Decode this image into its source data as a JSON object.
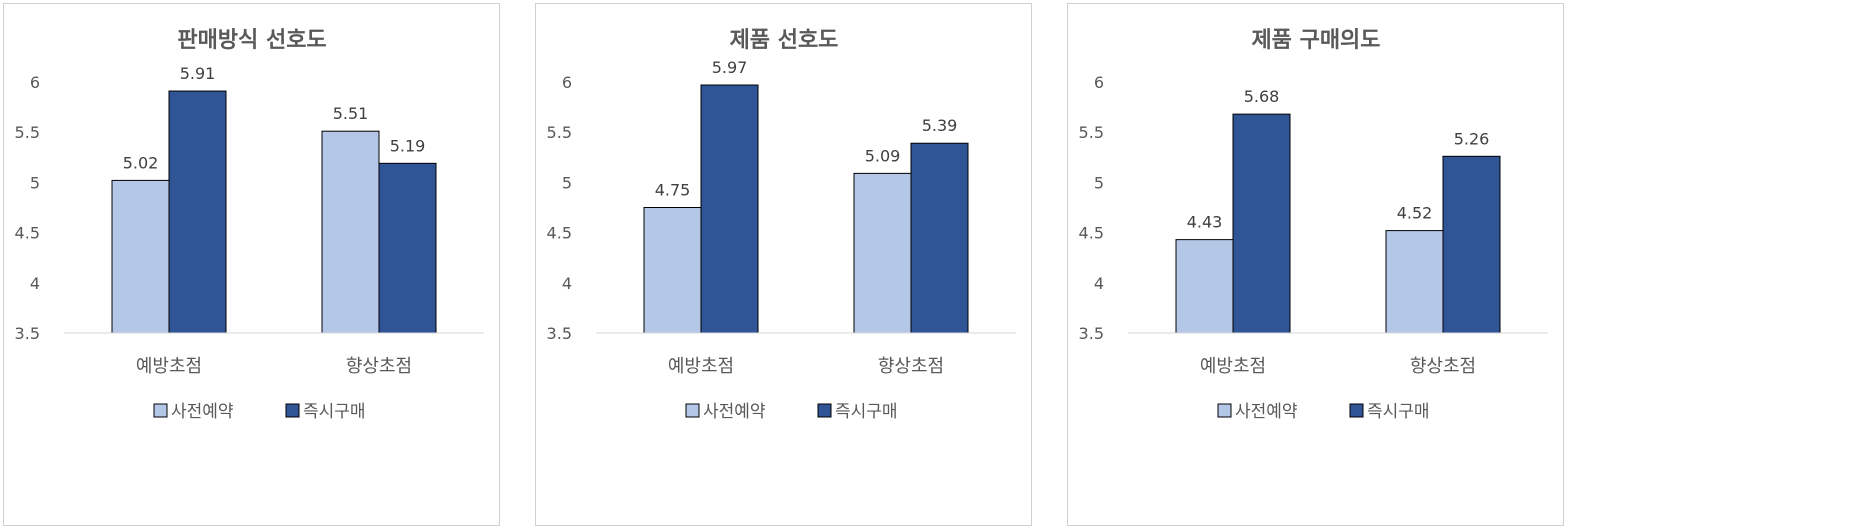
{
  "chart_data": [
    {
      "type": "bar",
      "title": "판매방식 선호도",
      "categories": [
        "예방초점",
        "향상초점"
      ],
      "series": [
        {
          "name": "사전예약",
          "values": [
            5.02,
            5.51
          ],
          "color": "#b4c7e7"
        },
        {
          "name": "즉시구매",
          "values": [
            5.91,
            5.19
          ],
          "color": "#2f5597"
        }
      ],
      "ylim": [
        3.5,
        6
      ],
      "yticks": [
        "3.5",
        "4",
        "4.5",
        "5",
        "5.5",
        "6"
      ],
      "data_labels": [
        [
          "5.02",
          "5.51"
        ],
        [
          "5.91",
          "5.19"
        ]
      ],
      "grid": false,
      "legend": "bottom"
    },
    {
      "type": "bar",
      "title": "제품 선호도",
      "categories": [
        "예방초점",
        "향상초점"
      ],
      "series": [
        {
          "name": "사전예약",
          "values": [
            4.75,
            5.09
          ],
          "color": "#b4c7e7"
        },
        {
          "name": "즉시구매",
          "values": [
            5.97,
            5.39
          ],
          "color": "#2f5597"
        }
      ],
      "ylim": [
        3.5,
        6
      ],
      "yticks": [
        "3.5",
        "4",
        "4.5",
        "5",
        "5.5",
        "6"
      ],
      "data_labels": [
        [
          "4.75",
          "5.09"
        ],
        [
          "5.97",
          "5.39"
        ]
      ],
      "grid": false,
      "legend": "bottom"
    },
    {
      "type": "bar",
      "title": "제품 구매의도",
      "categories": [
        "예방초점",
        "향상초점"
      ],
      "series": [
        {
          "name": "사전예약",
          "values": [
            4.43,
            4.52
          ],
          "color": "#b4c7e7"
        },
        {
          "name": "즉시구매",
          "values": [
            5.68,
            5.26
          ],
          "color": "#2f5597"
        }
      ],
      "ylim": [
        3.5,
        6
      ],
      "yticks": [
        "3.5",
        "4",
        "4.5",
        "5",
        "5.5",
        "6"
      ],
      "data_labels": [
        [
          "4.43",
          "4.52"
        ],
        [
          "5.68",
          "5.26"
        ]
      ],
      "grid": false,
      "legend": "bottom"
    }
  ]
}
